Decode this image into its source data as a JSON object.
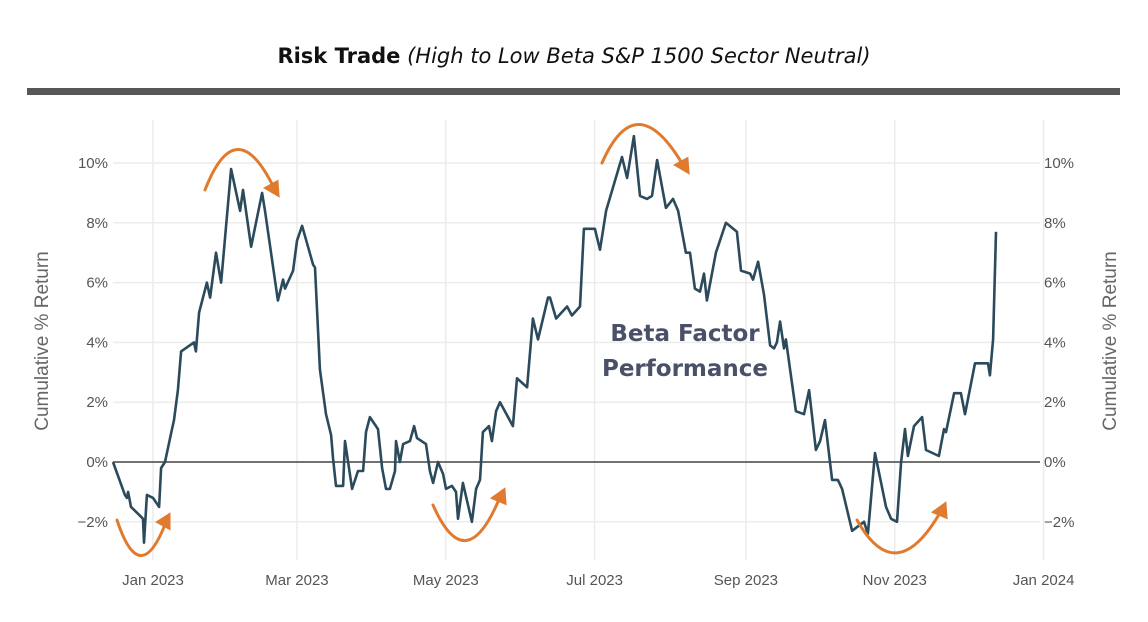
{
  "chart_data": {
    "type": "line",
    "title": "Risk Trade",
    "subtitle": "(High to Low Beta S&P 1500 Sector Neutral)",
    "xlabel": "",
    "ylabel": "Cumulative % Return",
    "ylabel_right": "Cumulative % Return",
    "x_units": "days since 2023-01-01",
    "xlim": [
      -16.4,
      365
    ],
    "ylim": [
      -3.3,
      11.4
    ],
    "grid": true,
    "x_ticks": [
      {
        "value": 0,
        "label": "Jan 2023"
      },
      {
        "value": 59,
        "label": "Mar 2023"
      },
      {
        "value": 120,
        "label": "May 2023"
      },
      {
        "value": 181,
        "label": "Jul 2023"
      },
      {
        "value": 243,
        "label": "Sep 2023"
      },
      {
        "value": 304,
        "label": "Nov 2023"
      },
      {
        "value": 365,
        "label": "Jan 2024"
      }
    ],
    "y_ticks": [
      {
        "value": -2,
        "label": "−2%"
      },
      {
        "value": 0,
        "label": "0%"
      },
      {
        "value": 2,
        "label": "2%"
      },
      {
        "value": 4,
        "label": "4%"
      },
      {
        "value": 6,
        "label": "6%"
      },
      {
        "value": 8,
        "label": "8%"
      },
      {
        "value": 10,
        "label": "10%"
      }
    ],
    "annotation": {
      "line1": "Beta Factor",
      "line2": "Performance"
    },
    "series": [
      {
        "name": "Beta Factor Performance",
        "color": "#2b4a5c",
        "x": [
          -16.4,
          -11.5,
          -10.7,
          -10.2,
          -9.0,
          -5.3,
          -4.1,
          -3.7,
          -2.5,
          0,
          2.5,
          3.3,
          4.9,
          7.8,
          8.6,
          10.2,
          11.5,
          16.8,
          17.6,
          18.9,
          22.1,
          23.4,
          25.8,
          27.9,
          32.0,
          35.7,
          36.9,
          40.2,
          44.7,
          45.9,
          51.2,
          53.3,
          54.1,
          57.4,
          59.0,
          61.1,
          65.6,
          66.4,
          68.4,
          70.9,
          72.1,
          73.0,
          73.8,
          75.0,
          77.9,
          78.7,
          81.6,
          84.0,
          86.1,
          87.3,
          88.9,
          92.2,
          93.9,
          95.5,
          97.1,
          99.2,
          99.6,
          101.2,
          102.5,
          105.3,
          107.0,
          108.2,
          111.9,
          113.5,
          114.8,
          116.8,
          118.9,
          120.1,
          122.5,
          124.2,
          125.0,
          127.0,
          130.7,
          132.4,
          134.0,
          135.2,
          137.7,
          138.9,
          140.6,
          142.2,
          147.5,
          149.2,
          153.3,
          155.7,
          157.8,
          161.9,
          162.7,
          165.2,
          169.7,
          171.7,
          175.0,
          176.6,
          181.1,
          183.2,
          185.7,
          192.2,
          194.3,
          197.1,
          199.6,
          202.5,
          204.5,
          206.6,
          210.2,
          213.1,
          215.2,
          218.4,
          220.1,
          222.1,
          224.2,
          225.8,
          227.0,
          230.7,
          234.8,
          239.3,
          241.0,
          244.7,
          245.9,
          248.0,
          250.4,
          252.9,
          254.5,
          255.7,
          257.0,
          258.6,
          259.4,
          263.5,
          266.8,
          268.9,
          271.7,
          273.4,
          275.4,
          278.3,
          280.7,
          282.4,
          286.5,
          291.4,
          293.0,
          295.9,
          300.4,
          302.5,
          304.9,
          306.6,
          308.2,
          309.4,
          311.9,
          315.2,
          316.8,
          322.1,
          324.2,
          325.0,
          328.3,
          331.1,
          332.8,
          336.9,
          342.2,
          343.0,
          344.3,
          345.5
        ],
        "y": [
          0,
          -1.1,
          -1.2,
          -1.0,
          -1.5,
          -1.8,
          -1.9,
          -2.7,
          -1.1,
          -1.2,
          -1.5,
          -0.2,
          0,
          1.1,
          1.4,
          2.4,
          3.7,
          4.0,
          3.7,
          5.0,
          6.0,
          5.5,
          7.0,
          6.0,
          9.8,
          8.4,
          9.1,
          7.2,
          9.0,
          8.4,
          5.4,
          6.1,
          5.8,
          6.4,
          7.4,
          7.9,
          6.6,
          6.5,
          3.1,
          1.6,
          1.2,
          0.9,
          0.1,
          -0.8,
          -0.8,
          0.7,
          -0.9,
          -0.3,
          -0.3,
          1.0,
          1.5,
          1.1,
          -0.2,
          -0.9,
          -0.9,
          -0.3,
          0.7,
          0,
          0.6,
          0.7,
          1.2,
          0.8,
          0.6,
          -0.3,
          -0.7,
          0,
          -0.4,
          -0.9,
          -0.8,
          -1.0,
          -1.9,
          -0.7,
          -2.0,
          -0.9,
          -0.6,
          1.0,
          1.2,
          0.7,
          1.7,
          2.0,
          1.2,
          2.8,
          2.5,
          4.8,
          4.1,
          5.5,
          5.5,
          4.8,
          5.2,
          4.9,
          5.2,
          7.8,
          7.8,
          7.1,
          8.4,
          10.2,
          9.5,
          10.9,
          8.9,
          8.8,
          8.9,
          10.1,
          8.5,
          8.8,
          8.4,
          7.0,
          7.0,
          5.8,
          5.7,
          6.3,
          5.4,
          7.0,
          8.0,
          7.7,
          6.4,
          6.3,
          6.1,
          6.7,
          5.6,
          3.9,
          3.8,
          4.0,
          4.7,
          3.8,
          4.1,
          1.7,
          1.6,
          2.4,
          0.4,
          0.7,
          1.4,
          -0.6,
          -0.6,
          -0.9,
          -2.3,
          -2.0,
          -2.4,
          0.3,
          -1.5,
          -1.9,
          -2.0,
          0,
          1.1,
          0.2,
          1.2,
          1.5,
          0.4,
          0.2,
          1.1,
          1.0,
          2.3,
          2.3,
          1.6,
          3.3,
          3.3,
          2.9,
          4.1,
          7.7
        ]
      }
    ]
  },
  "colors": {
    "line": "#2b4a5c",
    "arrow": "#e07a2e",
    "grid": "#ececec",
    "zero": "#444444"
  }
}
